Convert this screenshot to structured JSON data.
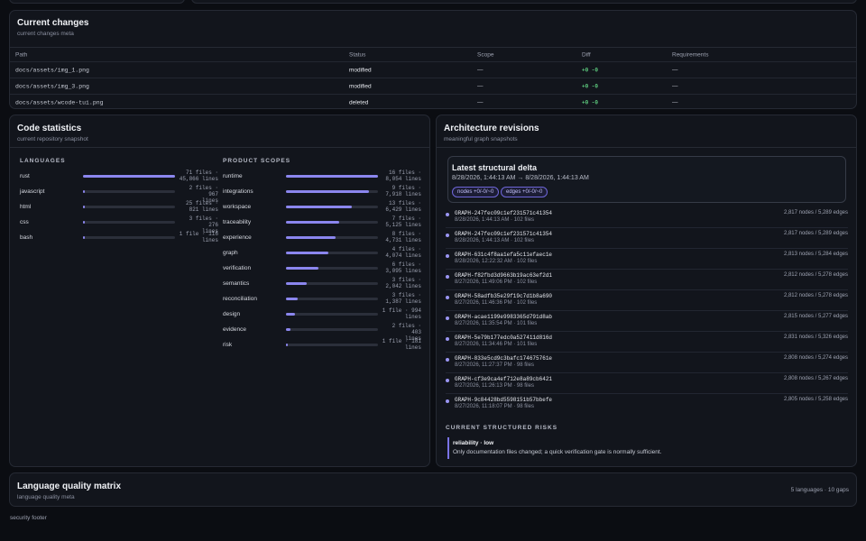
{
  "changes": {
    "title": "Current changes",
    "subtitle": "current changes meta",
    "columns": [
      "Path",
      "Status",
      "Scope",
      "Diff",
      "Requirements"
    ],
    "rows": [
      {
        "path": "docs/assets/img_1.png",
        "status": "modified",
        "scope": "—",
        "diff": "+0 -0",
        "req": "—"
      },
      {
        "path": "docs/assets/img_3.png",
        "status": "modified",
        "scope": "—",
        "diff": "+0 -0",
        "req": "—"
      },
      {
        "path": "docs/assets/wcode-tui.png",
        "status": "deleted",
        "scope": "—",
        "diff": "+0 -0",
        "req": "—"
      }
    ]
  },
  "stats": {
    "title": "Code statistics",
    "subtitle": "current repository snapshot",
    "languages_label": "LANGUAGES",
    "scopes_label": "PRODUCT SCOPES",
    "languages": [
      {
        "name": "rust",
        "files": "71 files ·",
        "lines": "45,866 lines",
        "fraction": 1.0
      },
      {
        "name": "javascript",
        "files": "2 files · 967",
        "lines": "lines",
        "fraction": 0.02
      },
      {
        "name": "html",
        "files": "25 files ·",
        "lines": "821 lines",
        "fraction": 0.02
      },
      {
        "name": "css",
        "files": "3 files · 276",
        "lines": "lines",
        "fraction": 0.01
      },
      {
        "name": "bash",
        "files": "1 file · 116",
        "lines": "lines",
        "fraction": 0.01
      }
    ],
    "scopes": [
      {
        "name": "runtime",
        "files": "16 files ·",
        "lines": "8,054 lines",
        "fraction": 1.0
      },
      {
        "name": "integrations",
        "files": "9 files ·",
        "lines": "7,918 lines",
        "fraction": 0.9
      },
      {
        "name": "workspace",
        "files": "13 files ·",
        "lines": "6,429 lines",
        "fraction": 0.72
      },
      {
        "name": "traceability",
        "files": "7 files ·",
        "lines": "5,125 lines",
        "fraction": 0.58
      },
      {
        "name": "experience",
        "files": "8 files ·",
        "lines": "4,731 lines",
        "fraction": 0.54
      },
      {
        "name": "graph",
        "files": "4 files ·",
        "lines": "4,074 lines",
        "fraction": 0.46
      },
      {
        "name": "verification",
        "files": "6 files ·",
        "lines": "3,095 lines",
        "fraction": 0.35
      },
      {
        "name": "semantics",
        "files": "3 files ·",
        "lines": "2,042 lines",
        "fraction": 0.23
      },
      {
        "name": "reconciliation",
        "files": "3 files ·",
        "lines": "1,387 lines",
        "fraction": 0.13
      },
      {
        "name": "design",
        "files": "1 file · 994",
        "lines": "lines",
        "fraction": 0.1
      },
      {
        "name": "evidence",
        "files": "2 files · 403",
        "lines": "lines",
        "fraction": 0.05
      },
      {
        "name": "risk",
        "files": "1 file · 181",
        "lines": "lines",
        "fraction": 0.02
      }
    ]
  },
  "arch": {
    "title": "Architecture revisions",
    "subtitle": "meaningful graph snapshots",
    "delta_title": "Latest structural delta",
    "delta_range": "8/28/2026, 1:44:13 AM → 8/28/2026, 1:44:13 AM",
    "pill_nodes": "nodes +0/-0/~0",
    "pill_edges": "edges +0/-0/~0",
    "snapshots": [
      {
        "id": "GRAPH-247fec09c1ef231571c41354",
        "meta": "8/28/2026, 1:44:13 AM · 102 files",
        "stats": "2,817 nodes / 5,289 edges"
      },
      {
        "id": "GRAPH-247fec09c1ef231571c41354",
        "meta": "8/28/2026, 1:44:13 AM · 102 files",
        "stats": "2,817 nodes / 5,289 edges"
      },
      {
        "id": "GRAPH-631c4f8aa1efa5c11efaec1e",
        "meta": "8/28/2026, 12:22:32 AM · 102 files",
        "stats": "2,813 nodes / 5,284 edges"
      },
      {
        "id": "GRAPH-f82fbd3d9663b19ac63ef2d1",
        "meta": "8/27/2026, 11:49:06 PM · 102 files",
        "stats": "2,812 nodes / 5,278 edges"
      },
      {
        "id": "GRAPH-58adfb35e29f19c7d1b8a690",
        "meta": "8/27/2026, 11:46:36 PM · 102 files",
        "stats": "2,812 nodes / 5,278 edges"
      },
      {
        "id": "GRAPH-acae1199e9983365d791d8ab",
        "meta": "8/27/2026, 11:35:54 PM · 101 files",
        "stats": "2,815 nodes / 5,277 edges"
      },
      {
        "id": "GRAPH-5e79b177edc0a527411d816d",
        "meta": "8/27/2026, 11:34:46 PM · 101 files",
        "stats": "2,831 nodes / 5,326 edges"
      },
      {
        "id": "GRAPH-833e5cd9c3bafc174675761e",
        "meta": "8/27/2026, 11:27:37 PM · 98 files",
        "stats": "2,808 nodes / 5,274 edges"
      },
      {
        "id": "GRAPH-cf3e9ca4ef712e8a89cb6421",
        "meta": "8/27/2026, 11:26:13 PM · 98 files",
        "stats": "2,808 nodes / 5,267 edges"
      },
      {
        "id": "GRAPH-9c84428bd5598151b57bbefe",
        "meta": "8/27/2026, 11:18:07 PM · 98 files",
        "stats": "2,805 nodes / 5,258 edges"
      }
    ],
    "risks_label": "CURRENT STRUCTURED RISKS",
    "risk_title": "reliability · low",
    "risk_text": "Only documentation files changed; a quick verification gate is normally sufficient."
  },
  "quality": {
    "title": "Language quality matrix",
    "subtitle": "language quality meta",
    "summary": "5 languages · 10 gaps"
  },
  "footer": {
    "text": "security footer"
  }
}
